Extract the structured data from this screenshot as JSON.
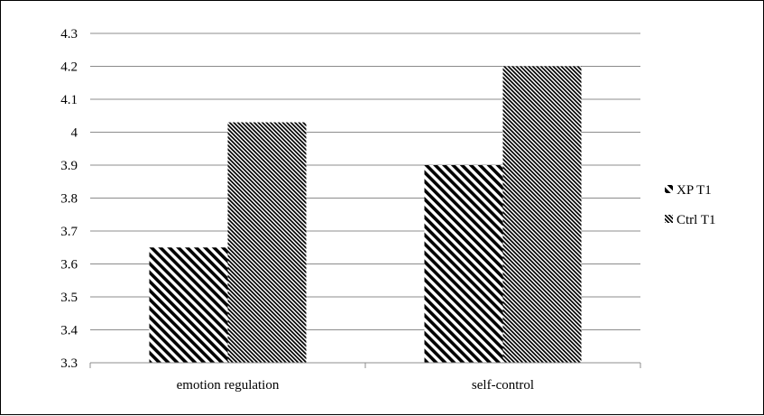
{
  "chart_data": {
    "type": "bar",
    "categories": [
      "emotion regulation",
      "self-control"
    ],
    "series": [
      {
        "name": "XP T1",
        "values": [
          3.65,
          3.9
        ]
      },
      {
        "name": "Ctrl T1",
        "values": [
          4.03,
          4.2
        ]
      }
    ],
    "yticks": [
      "3.3",
      "3.4",
      "3.5",
      "3.6",
      "3.7",
      "3.8",
      "3.9",
      "4",
      "4.1",
      "4.2",
      "4.3"
    ],
    "ylim": [
      3.3,
      4.3
    ],
    "grid": true,
    "legend_position": "right",
    "colors": {
      "bar": "#000000",
      "grid": "#8c8c8c",
      "axis": "#8c8c8c"
    }
  }
}
